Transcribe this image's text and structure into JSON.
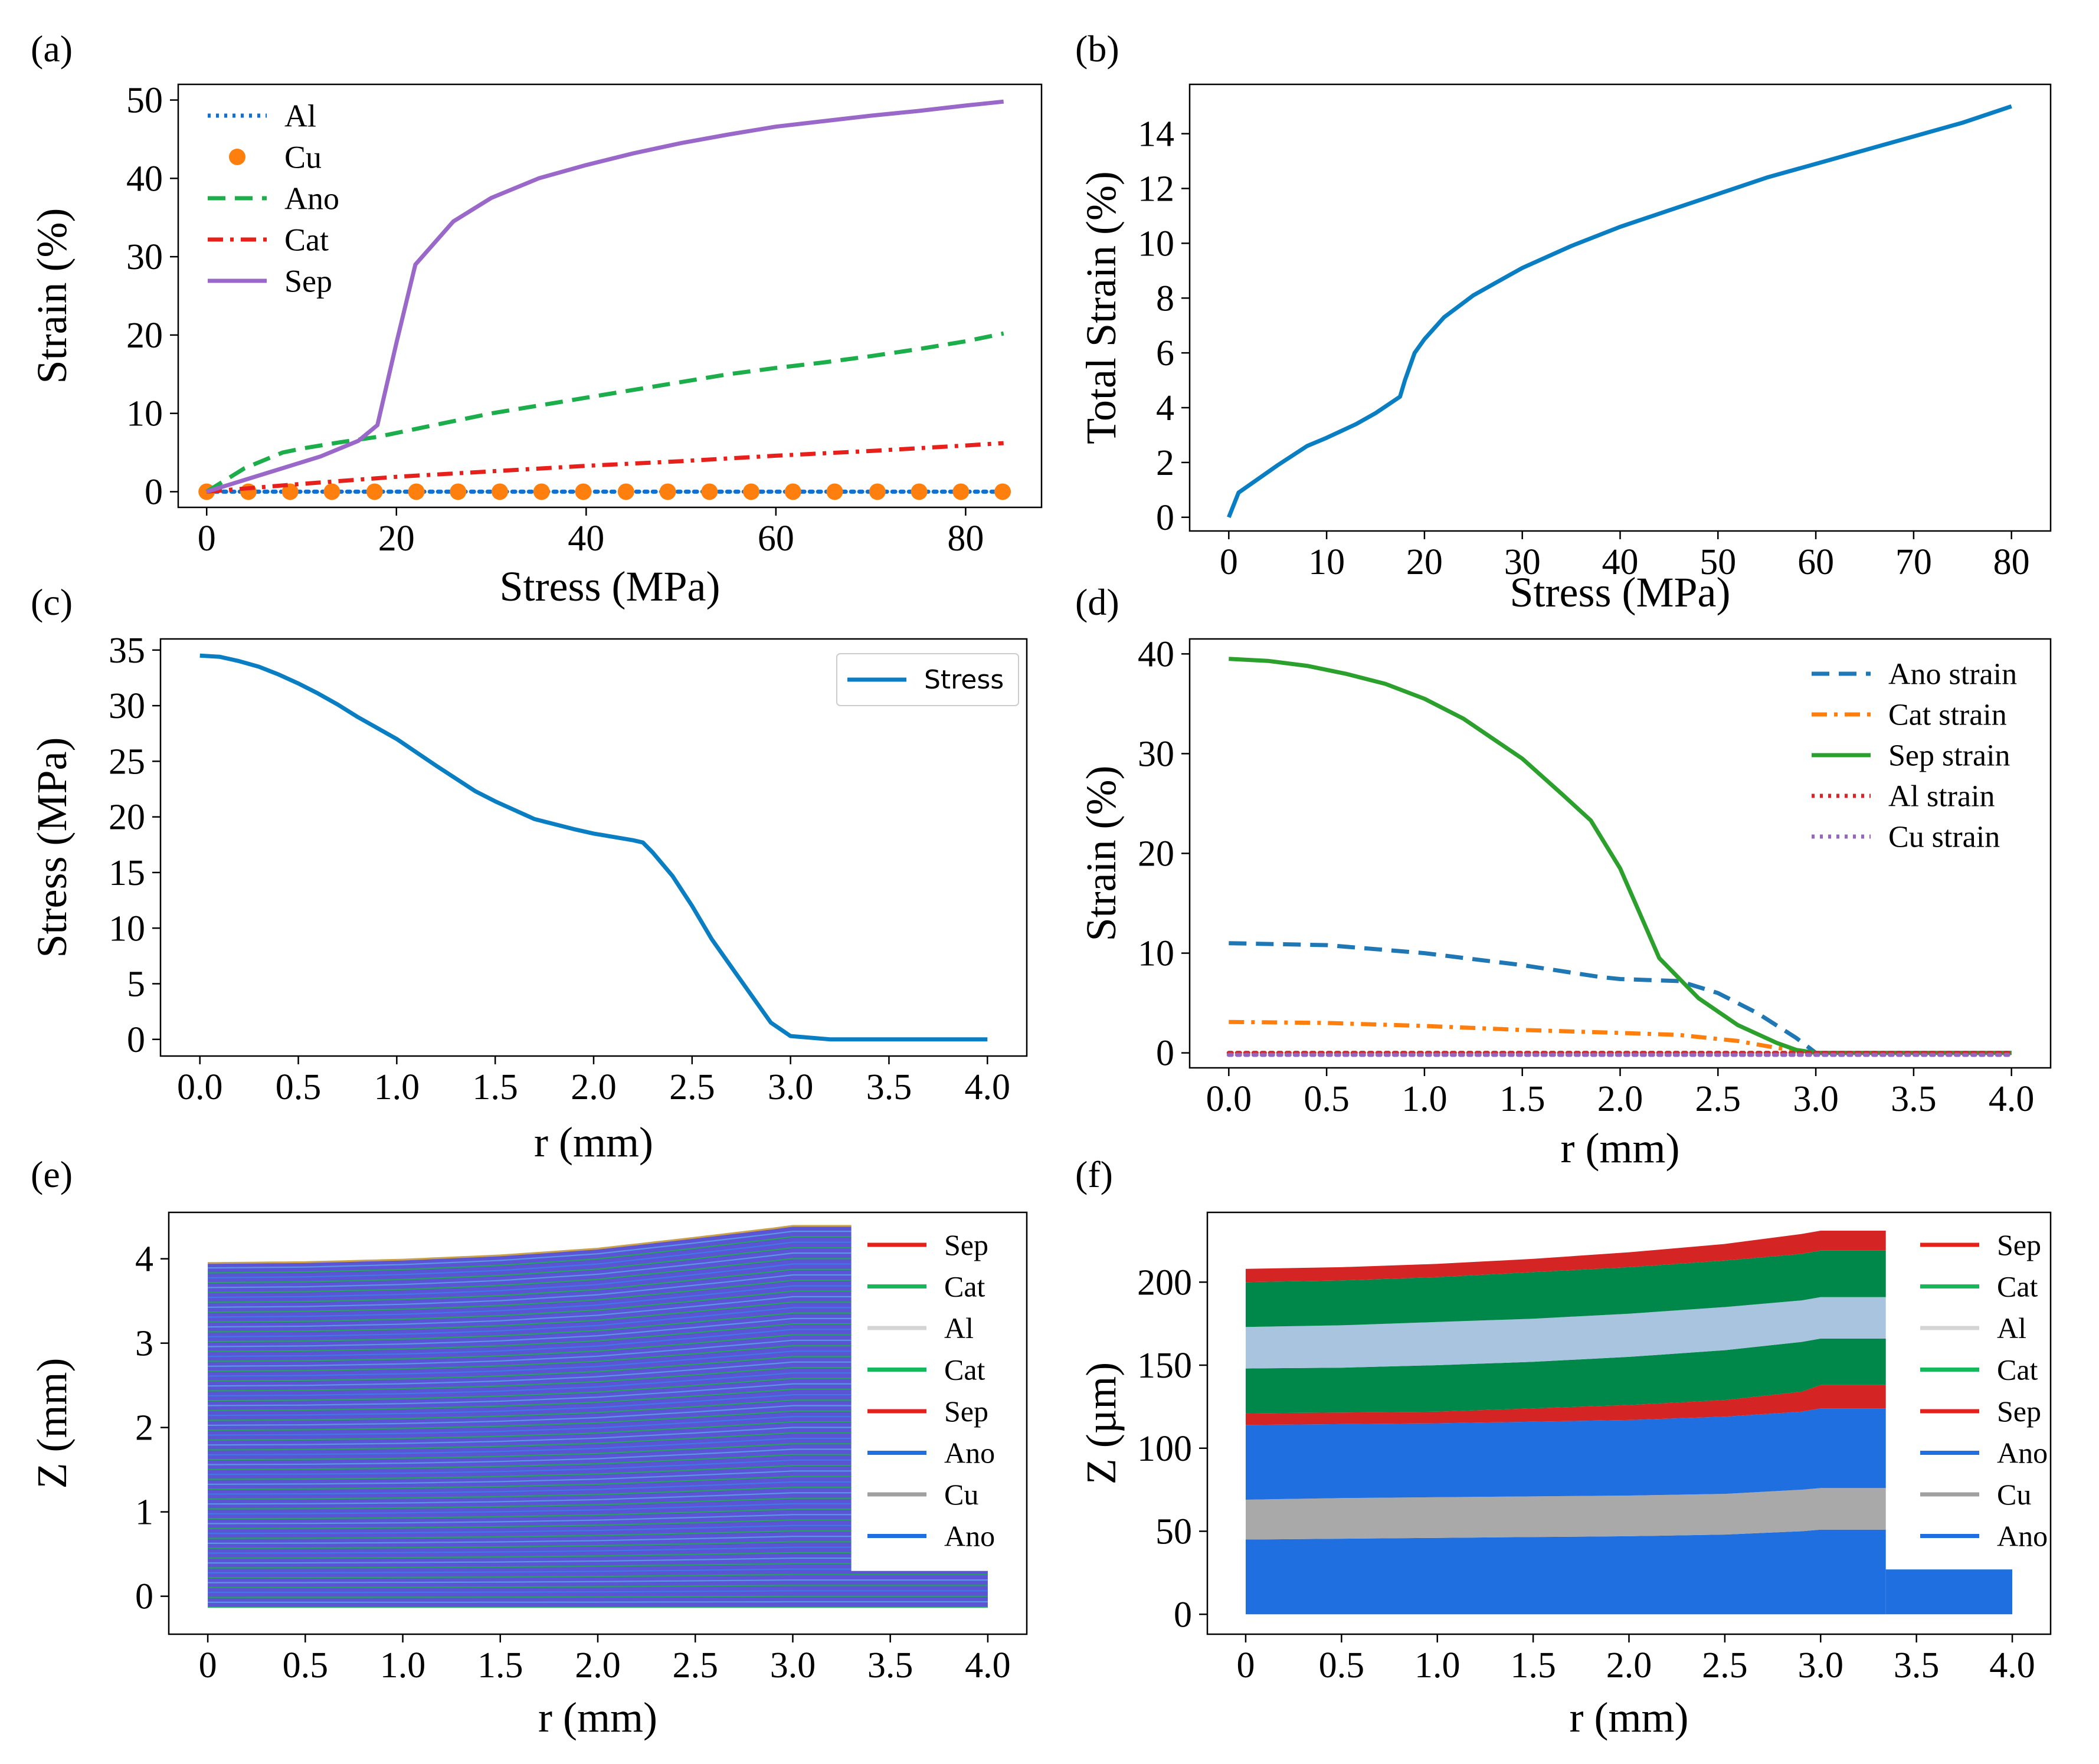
{
  "colors": {
    "blue": "#1f77b4",
    "orange": "#ff7f0e",
    "green": "#2ca02c",
    "red": "#d62728",
    "purple": "#9467bd",
    "mpl_blue": "#0a7ec2",
    "al_blue": "#1170d0",
    "a_green": "#1cae4a",
    "a_red": "#e8201c",
    "a_purple": "#9a68c8",
    "layer_sep": "#d42424",
    "layer_cat": "#00884a",
    "layer_al": "#a8c4de",
    "layer_ano": "#1f6fe0",
    "layer_cu": "#a9a9a9",
    "leg_sep": "#e8201c",
    "leg_cat": "#15b85a",
    "leg_al": "#d4d4d4",
    "leg_ano": "#1f6fe0",
    "leg_cu": "#a0a0a0"
  },
  "chart_data": [
    {
      "id": "a",
      "panel_label": "(a)",
      "type": "line",
      "xlabel": "Stress (MPa)",
      "ylabel": "Strain (%)",
      "xlim": [
        -3,
        88
      ],
      "ylim": [
        -2,
        52
      ],
      "xticks": [
        0,
        20,
        40,
        60,
        80
      ],
      "yticks": [
        0,
        10,
        20,
        30,
        40,
        50
      ],
      "legend_position": "top-left",
      "series": [
        {
          "name": "Al",
          "style": "dotted",
          "color": "#1170d0",
          "x": [
            0,
            84
          ],
          "y": [
            0,
            0
          ]
        },
        {
          "name": "Cu",
          "style": "markers",
          "color": "#ff7f0e",
          "x": [
            0,
            4.4,
            8.8,
            13.2,
            17.7,
            22.1,
            26.5,
            30.9,
            35.3,
            39.7,
            44.2,
            48.6,
            53,
            57.4,
            61.8,
            66.2,
            70.7,
            75.1,
            79.5,
            83.9
          ],
          "y": [
            0,
            0,
            0,
            0,
            0,
            0,
            0,
            0,
            0,
            0,
            0,
            0,
            0,
            0,
            0,
            0,
            0,
            0,
            0,
            0
          ]
        },
        {
          "name": "Ano",
          "style": "dashed",
          "color": "#1cae4a",
          "x": [
            0,
            2,
            4,
            6,
            8,
            10,
            14,
            18,
            22,
            26,
            30,
            35,
            40,
            45,
            50,
            55,
            60,
            65,
            70,
            75,
            80,
            84
          ],
          "y": [
            0,
            1.5,
            3,
            4,
            5,
            5.5,
            6.3,
            7,
            8,
            9,
            10,
            11,
            12,
            13,
            14,
            15,
            15.8,
            16.5,
            17.3,
            18.2,
            19.2,
            20.2
          ]
        },
        {
          "name": "Cat",
          "style": "dashdot",
          "color": "#e8201c",
          "x": [
            0,
            10,
            20,
            30,
            40,
            50,
            60,
            70,
            80,
            84
          ],
          "y": [
            0,
            1,
            1.9,
            2.6,
            3.3,
            3.9,
            4.6,
            5.2,
            5.9,
            6.2
          ]
        },
        {
          "name": "Sep",
          "style": "solid",
          "color": "#9a68c8",
          "x": [
            0,
            4,
            8,
            12,
            16,
            18,
            20,
            22,
            26,
            30,
            35,
            40,
            45,
            50,
            55,
            60,
            65,
            70,
            75,
            80,
            84
          ],
          "y": [
            0,
            1.5,
            3,
            4.5,
            6.5,
            8.5,
            19,
            29,
            34.5,
            37.5,
            40,
            41.7,
            43.2,
            44.5,
            45.6,
            46.6,
            47.3,
            48,
            48.6,
            49.3,
            49.8
          ]
        }
      ]
    },
    {
      "id": "b",
      "panel_label": "(b)",
      "type": "line",
      "xlabel": "Stress (MPa)",
      "ylabel": "Total Strain (%)",
      "xlim": [
        -4,
        84
      ],
      "ylim": [
        -0.5,
        15.8
      ],
      "xticks": [
        0,
        10,
        20,
        30,
        40,
        50,
        60,
        70,
        80
      ],
      "yticks": [
        0,
        2,
        4,
        6,
        8,
        10,
        12,
        14
      ],
      "series": [
        {
          "name": "Total",
          "style": "solid",
          "color": "#0a7ec2",
          "x": [
            0,
            1,
            3,
            5,
            8,
            10,
            13,
            15,
            17.5,
            18,
            19,
            20,
            22,
            25,
            28,
            30,
            35,
            40,
            45,
            50,
            55,
            60,
            65,
            70,
            75,
            80
          ],
          "y": [
            0,
            0.9,
            1.4,
            1.9,
            2.6,
            2.9,
            3.4,
            3.8,
            4.4,
            5,
            6,
            6.5,
            7.3,
            8.1,
            8.7,
            9.1,
            9.9,
            10.6,
            11.2,
            11.8,
            12.4,
            12.9,
            13.4,
            13.9,
            14.4,
            15
          ]
        }
      ]
    },
    {
      "id": "c",
      "panel_label": "(c)",
      "type": "line",
      "xlabel": "r  (mm)",
      "ylabel": "Stress (MPa)",
      "xlim": [
        -0.2,
        4.2
      ],
      "ylim": [
        -1.5,
        36
      ],
      "xticks": [
        0.0,
        0.5,
        1.0,
        1.5,
        2.0,
        2.5,
        3.0,
        3.5,
        4.0
      ],
      "xtick_labels": [
        "0.0",
        "0.5",
        "1.0",
        "1.5",
        "2.0",
        "2.5",
        "3.0",
        "3.5",
        "4.0"
      ],
      "yticks": [
        0,
        5,
        10,
        15,
        20,
        25,
        30,
        35
      ],
      "legend_position": "top-right",
      "series": [
        {
          "name": "Stress",
          "style": "solid",
          "color": "#0a7ec2",
          "x": [
            0,
            0.1,
            0.2,
            0.3,
            0.4,
            0.5,
            0.6,
            0.7,
            0.8,
            0.9,
            1.0,
            1.2,
            1.4,
            1.5,
            1.7,
            1.9,
            2.0,
            2.1,
            2.2,
            2.25,
            2.3,
            2.4,
            2.5,
            2.6,
            2.7,
            2.8,
            2.9,
            3.0,
            3.2,
            4.0
          ],
          "y": [
            34.5,
            34.4,
            34,
            33.5,
            32.8,
            32,
            31.1,
            30.1,
            29,
            28,
            27,
            24.6,
            22.3,
            21.4,
            19.8,
            18.9,
            18.5,
            18.2,
            17.9,
            17.7,
            16.8,
            14.7,
            12,
            9,
            6.5,
            4,
            1.5,
            0.3,
            0,
            0
          ]
        }
      ]
    },
    {
      "id": "d",
      "panel_label": "(d)",
      "type": "line",
      "xlabel": "r (mm)",
      "ylabel": "Strain (%)",
      "xlim": [
        -0.2,
        4.2
      ],
      "ylim": [
        -1.5,
        41.5
      ],
      "xticks": [
        0.0,
        0.5,
        1.0,
        1.5,
        2.0,
        2.5,
        3.0,
        3.5,
        4.0
      ],
      "xtick_labels": [
        "0.0",
        "0.5",
        "1.0",
        "1.5",
        "2.0",
        "2.5",
        "3.0",
        "3.5",
        "4.0"
      ],
      "yticks": [
        0,
        10,
        20,
        30,
        40
      ],
      "legend_position": "top-right",
      "series": [
        {
          "name": "Ano strain",
          "style": "dashed",
          "color": "#1f77b4",
          "x": [
            0,
            0.5,
            1.0,
            1.5,
            1.9,
            2.0,
            2.3,
            2.5,
            2.7,
            2.9,
            3.0,
            3.5,
            4.0
          ],
          "y": [
            11,
            10.8,
            10,
            8.8,
            7.6,
            7.4,
            7.2,
            6,
            4,
            1.5,
            0,
            0,
            0
          ]
        },
        {
          "name": "Cat strain",
          "style": "dashdot",
          "color": "#ff7f0e",
          "x": [
            0,
            0.5,
            1.0,
            1.5,
            2.0,
            2.3,
            2.6,
            2.8,
            3.0,
            4.0
          ],
          "y": [
            3.1,
            3,
            2.7,
            2.3,
            2,
            1.8,
            1.2,
            0.5,
            0,
            0
          ]
        },
        {
          "name": "Sep strain",
          "style": "solid",
          "color": "#2ca02c",
          "x": [
            0,
            0.2,
            0.4,
            0.6,
            0.8,
            1.0,
            1.2,
            1.5,
            1.7,
            1.85,
            2.0,
            2.1,
            2.2,
            2.4,
            2.6,
            2.8,
            2.9,
            3.0,
            4.0
          ],
          "y": [
            39.5,
            39.3,
            38.8,
            38,
            37,
            35.5,
            33.5,
            29.5,
            26,
            23.3,
            18.5,
            14,
            9.5,
            5.5,
            2.8,
            1,
            0.3,
            0,
            0
          ]
        },
        {
          "name": "Al strain",
          "style": "dotted",
          "color": "#d62728",
          "x": [
            0,
            4.0
          ],
          "y": [
            0,
            0
          ]
        },
        {
          "name": "Cu strain",
          "style": "dotted",
          "color": "#9467bd",
          "x": [
            0,
            4.0
          ],
          "y": [
            -0.2,
            -0.2
          ]
        }
      ]
    },
    {
      "id": "e",
      "panel_label": "(e)",
      "type": "line",
      "xlabel": "r (mm)",
      "ylabel": "Z (mm)",
      "xlim": [
        -0.2,
        4.2
      ],
      "ylim": [
        -0.45,
        4.55
      ],
      "xticks": [
        0,
        0.5,
        1.0,
        1.5,
        2.0,
        2.5,
        3.0,
        3.5,
        4.0
      ],
      "xtick_labels": [
        "0",
        "0.5",
        "1.0",
        "1.5",
        "2.0",
        "2.5",
        "3.0",
        "3.5",
        "4.0"
      ],
      "yticks": [
        0,
        1,
        2,
        3,
        4
      ],
      "legend_position": "top-right",
      "stack_top_profile": {
        "r": [
          0,
          0.5,
          1.0,
          1.5,
          2.0,
          2.5,
          2.9,
          3.0,
          3.3
        ],
        "z": [
          3.95,
          3.96,
          3.99,
          4.04,
          4.12,
          4.25,
          4.36,
          4.39,
          4.39
        ]
      },
      "stack_bottom": -0.13,
      "stack_end_r": 3.3,
      "tab_end_r": 4.0,
      "tab_top_z": 0.3,
      "layer_count": 70,
      "legend": [
        {
          "name": "Sep",
          "color": "#e8201c"
        },
        {
          "name": "Cat",
          "color": "#15b85a"
        },
        {
          "name": "Al",
          "color": "#d4d4d4"
        },
        {
          "name": "Cat",
          "color": "#15b85a"
        },
        {
          "name": "Sep",
          "color": "#e8201c"
        },
        {
          "name": "Ano",
          "color": "#1f6fe0"
        },
        {
          "name": "Cu",
          "color": "#a0a0a0"
        },
        {
          "name": "Ano",
          "color": "#1f6fe0"
        }
      ]
    },
    {
      "id": "f",
      "panel_label": "(f)",
      "type": "area",
      "xlabel": "r (mm)",
      "ylabel": "Z (µm)",
      "xlim": [
        -0.2,
        4.2
      ],
      "ylim": [
        -12,
        242
      ],
      "xticks": [
        0,
        0.5,
        1.0,
        1.5,
        2.0,
        2.5,
        3.0,
        3.5,
        4.0
      ],
      "xtick_labels": [
        "0",
        "0.5",
        "1.0",
        "1.5",
        "2.0",
        "2.5",
        "3.0",
        "3.5",
        "4.0"
      ],
      "yticks": [
        0,
        50,
        100,
        150,
        200
      ],
      "legend_position": "top-right",
      "r": [
        0,
        0.5,
        1.0,
        1.5,
        2.0,
        2.5,
        2.9,
        3.0,
        3.34
      ],
      "layers": [
        {
          "name": "Ano",
          "color": "#1f6fe0",
          "bottom": [
            0,
            0,
            0,
            0,
            0,
            0,
            0,
            0,
            0
          ],
          "top": [
            45,
            45.5,
            46,
            46.5,
            47,
            48,
            50,
            51,
            51
          ]
        },
        {
          "name": "Cu",
          "color": "#a9a9a9",
          "bottom": [
            45,
            45.5,
            46,
            46.5,
            47,
            48,
            50,
            51,
            51
          ],
          "top": [
            69,
            70,
            70.5,
            71,
            71.5,
            72.5,
            75,
            76,
            76
          ]
        },
        {
          "name": "Ano",
          "color": "#1f6fe0",
          "bottom": [
            69,
            70,
            70.5,
            71,
            71.5,
            72.5,
            75,
            76,
            76
          ],
          "top": [
            114,
            114.5,
            115,
            116,
            117,
            119,
            122,
            124,
            124
          ]
        },
        {
          "name": "Sep",
          "color": "#d42424",
          "bottom": [
            114,
            114.5,
            115,
            116,
            117,
            119,
            122,
            124,
            124
          ],
          "top": [
            121,
            121.5,
            122,
            124,
            126,
            129,
            134,
            138,
            138
          ]
        },
        {
          "name": "Cat",
          "color": "#00884a",
          "bottom": [
            121,
            121.5,
            122,
            124,
            126,
            129,
            134,
            138,
            138
          ],
          "top": [
            148,
            148.5,
            150,
            152,
            155,
            159,
            164,
            166,
            166
          ]
        },
        {
          "name": "Al",
          "color": "#a8c4de",
          "bottom": [
            148,
            148.5,
            150,
            152,
            155,
            159,
            164,
            166,
            166
          ],
          "top": [
            173,
            174,
            176,
            178,
            181,
            185,
            189,
            191,
            191
          ]
        },
        {
          "name": "Cat",
          "color": "#00884a",
          "bottom": [
            173,
            174,
            176,
            178,
            181,
            185,
            189,
            191,
            191
          ],
          "top": [
            200,
            201,
            203,
            206,
            209,
            213,
            217,
            219,
            219
          ]
        },
        {
          "name": "Sep",
          "color": "#d42424",
          "bottom": [
            200,
            201,
            203,
            206,
            209,
            213,
            217,
            219,
            219
          ],
          "top": [
            208,
            209,
            211,
            214,
            218,
            223,
            229,
            231,
            231
          ]
        }
      ],
      "tab": {
        "color": "#1f6fe0",
        "r0": 3.34,
        "r1": 4.0,
        "bottom": 0,
        "top": 27
      },
      "legend": [
        {
          "name": "Sep",
          "color": "#e8201c"
        },
        {
          "name": "Cat",
          "color": "#15b85a"
        },
        {
          "name": "Al",
          "color": "#d4d4d4"
        },
        {
          "name": "Cat",
          "color": "#15b85a"
        },
        {
          "name": "Sep",
          "color": "#e8201c"
        },
        {
          "name": "Ano",
          "color": "#1f6fe0"
        },
        {
          "name": "Cu",
          "color": "#a0a0a0"
        },
        {
          "name": "Ano",
          "color": "#1f6fe0"
        }
      ]
    }
  ]
}
